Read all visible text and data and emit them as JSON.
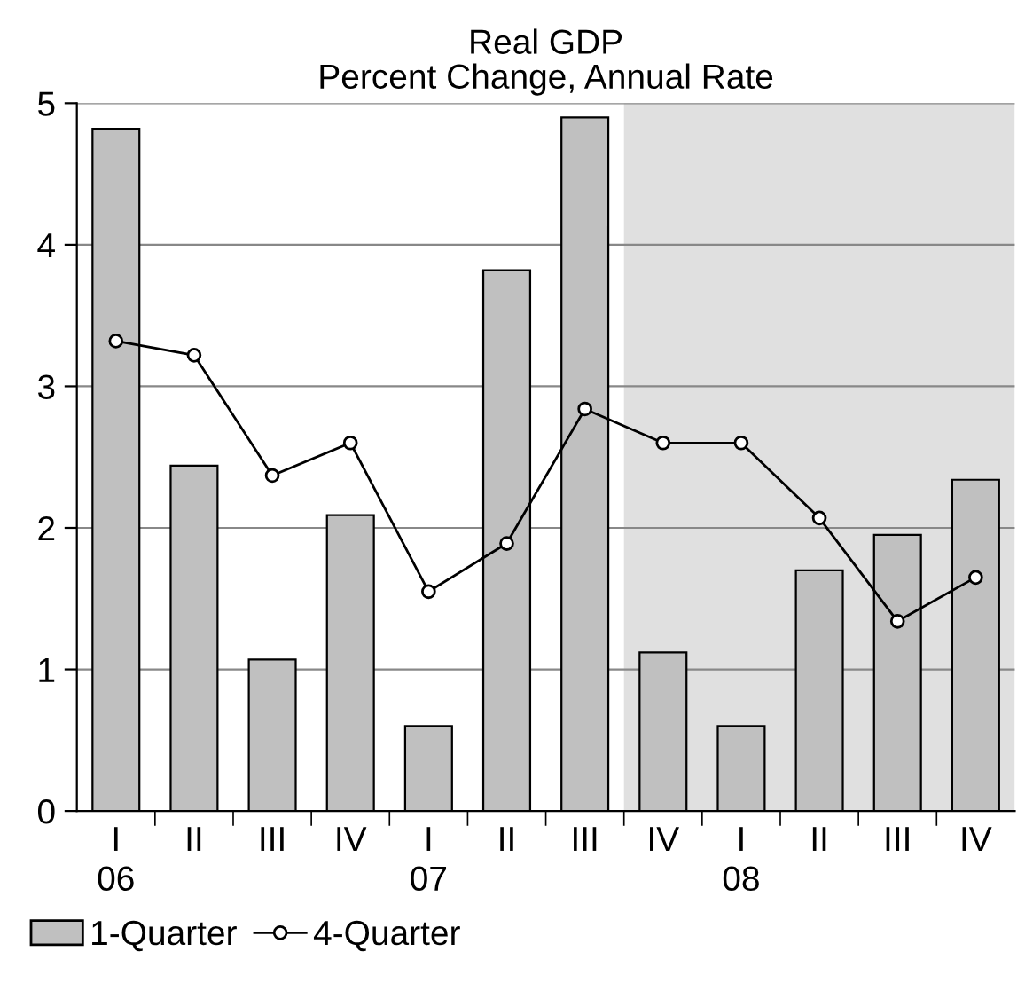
{
  "chart_data": {
    "type": "bar",
    "title": "Real GDP\nPercent Change, Annual Rate",
    "categories": [
      "I\n06",
      "II",
      "III",
      "IV",
      "I\n07",
      "II",
      "III",
      "IV",
      "I\n08",
      "II",
      "III",
      "IV"
    ],
    "series": [
      {
        "name": "1-Quarter",
        "color": "#c0c0c0",
        "values": [
          4.82,
          2.44,
          1.07,
          2.09,
          0.6,
          3.82,
          4.9,
          1.12,
          0.6,
          1.7,
          1.95,
          2.34
        ]
      },
      {
        "name": "4-Quarter",
        "type": "line",
        "color": "#000000",
        "marker": "circle",
        "values": [
          3.32,
          3.22,
          2.37,
          2.6,
          1.55,
          1.89,
          2.84,
          2.6,
          2.6,
          2.07,
          1.34,
          1.65
        ]
      }
    ],
    "ylim": [
      0,
      5
    ],
    "yticks": [
      0,
      1,
      2,
      3,
      4,
      5
    ],
    "grid": "y",
    "legend": "bottom"
  }
}
